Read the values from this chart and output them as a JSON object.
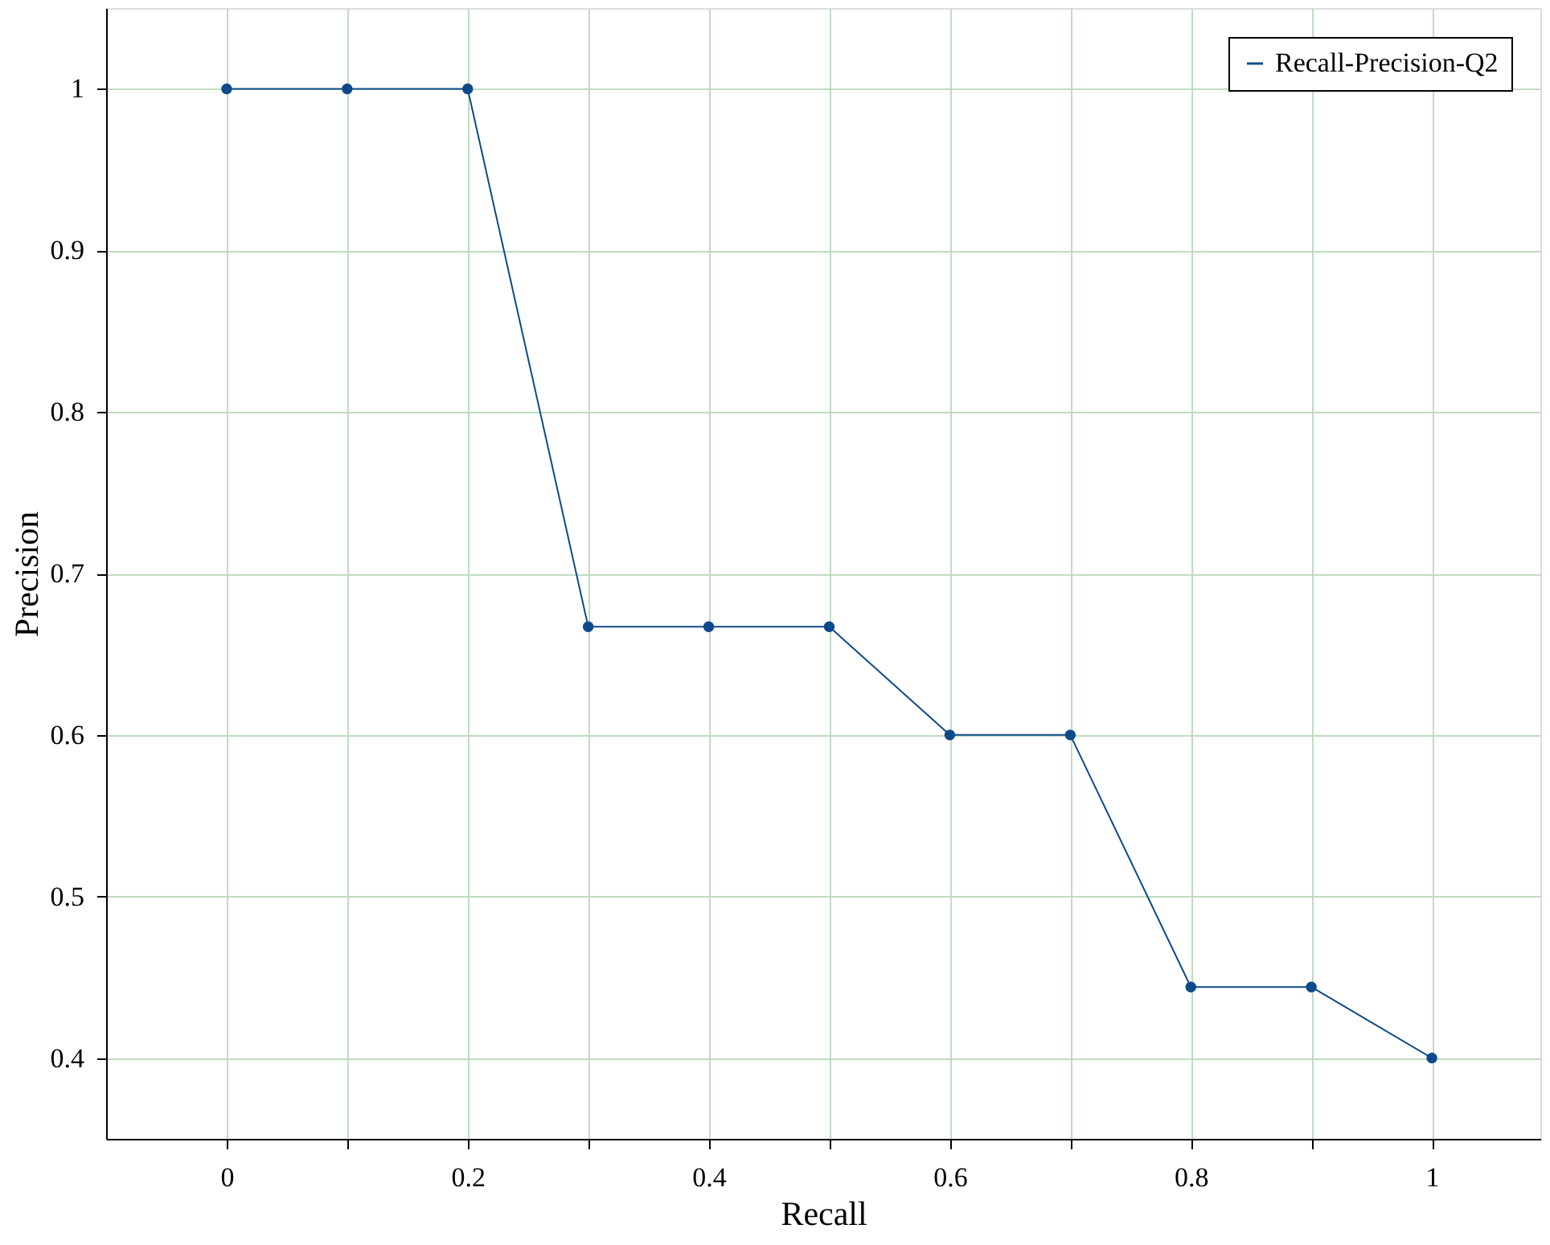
{
  "chart_data": {
    "type": "line",
    "xlabel": "Recall",
    "ylabel": "Precision",
    "x": [
      0,
      0.1,
      0.2,
      0.3,
      0.4,
      0.5,
      0.6,
      0.7,
      0.8,
      0.9,
      1
    ],
    "series": [
      {
        "name": "Recall-Precision-Q2",
        "color": "#0d4a8c",
        "values": [
          1,
          1,
          1,
          0.667,
          0.667,
          0.667,
          0.6,
          0.6,
          0.444,
          0.444,
          0.4
        ]
      }
    ],
    "xlim": [
      -0.1,
      1.09
    ],
    "ylim": [
      0.35,
      1.05
    ],
    "xticks": [
      0,
      {
        "value": 0.1,
        "label": null
      },
      0.2,
      {
        "value": 0.3,
        "label": null
      },
      0.4,
      {
        "value": 0.5,
        "label": null
      },
      0.6,
      {
        "value": 0.7,
        "label": null
      },
      0.8,
      {
        "value": 0.9,
        "label": null
      },
      1
    ],
    "yticks": [
      0.4,
      0.5,
      0.6,
      0.7,
      0.8,
      0.9,
      1
    ],
    "grid": true,
    "legend": "top right",
    "marker": "circle",
    "line_style": "solid"
  }
}
